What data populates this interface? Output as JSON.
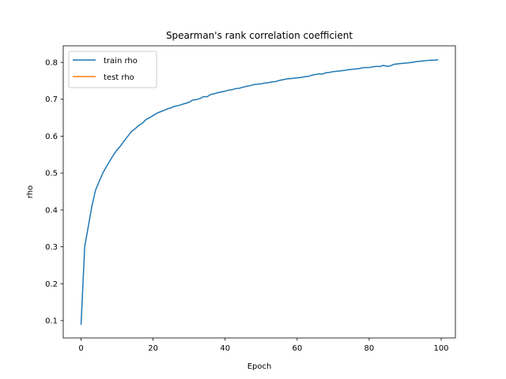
{
  "chart_data": {
    "type": "line",
    "title": "Spearman's rank correlation coefficient",
    "xlabel": "Epoch",
    "ylabel": "rho",
    "xlim": [
      -4.95,
      103.95
    ],
    "ylim": [
      0.053,
      0.845
    ],
    "xticks": [
      0,
      20,
      40,
      60,
      80,
      100
    ],
    "yticks": [
      0.1,
      0.2,
      0.3,
      0.4,
      0.5,
      0.6,
      0.7,
      0.8
    ],
    "xtick_labels": [
      "0",
      "20",
      "40",
      "60",
      "80",
      "100"
    ],
    "ytick_labels": [
      "0.1",
      "0.2",
      "0.3",
      "0.4",
      "0.5",
      "0.6",
      "0.7",
      "0.8"
    ],
    "grid": false,
    "legend_position": "upper-left",
    "series": [
      {
        "name": "train rho",
        "color": "#1f77b4",
        "x": [
          0,
          1,
          2,
          3,
          4,
          5,
          6,
          7,
          8,
          9,
          10,
          11,
          12,
          13,
          14,
          15,
          16,
          17,
          18,
          19,
          20,
          21,
          22,
          23,
          24,
          25,
          26,
          27,
          28,
          29,
          30,
          31,
          32,
          33,
          34,
          35,
          36,
          37,
          38,
          39,
          40,
          41,
          42,
          43,
          44,
          45,
          46,
          47,
          48,
          49,
          50,
          51,
          52,
          53,
          54,
          55,
          56,
          57,
          58,
          59,
          60,
          61,
          62,
          63,
          64,
          65,
          66,
          67,
          68,
          69,
          70,
          71,
          72,
          73,
          74,
          75,
          76,
          77,
          78,
          79,
          80,
          81,
          82,
          83,
          84,
          85,
          86,
          87,
          88,
          89,
          90,
          91,
          92,
          93,
          94,
          95,
          96,
          97,
          98,
          99
        ],
        "values": [
          0.09,
          0.3,
          0.355,
          0.41,
          0.453,
          0.477,
          0.499,
          0.517,
          0.533,
          0.549,
          0.563,
          0.574,
          0.588,
          0.6,
          0.613,
          0.62,
          0.629,
          0.635,
          0.645,
          0.65,
          0.656,
          0.662,
          0.666,
          0.67,
          0.674,
          0.677,
          0.681,
          0.683,
          0.686,
          0.689,
          0.692,
          0.698,
          0.699,
          0.702,
          0.707,
          0.707,
          0.713,
          0.715,
          0.718,
          0.72,
          0.722,
          0.725,
          0.726,
          0.729,
          0.73,
          0.733,
          0.735,
          0.737,
          0.74,
          0.741,
          0.742,
          0.744,
          0.745,
          0.747,
          0.748,
          0.751,
          0.753,
          0.755,
          0.756,
          0.757,
          0.758,
          0.759,
          0.761,
          0.762,
          0.765,
          0.767,
          0.769,
          0.768,
          0.772,
          0.773,
          0.775,
          0.776,
          0.777,
          0.778,
          0.78,
          0.781,
          0.782,
          0.783,
          0.785,
          0.786,
          0.786,
          0.788,
          0.789,
          0.789,
          0.792,
          0.789,
          0.791,
          0.795,
          0.796,
          0.797,
          0.798,
          0.799,
          0.8,
          0.802,
          0.803,
          0.804,
          0.805,
          0.806,
          0.806,
          0.807
        ]
      },
      {
        "name": "test rho",
        "color": "#ff7f0e",
        "x": [],
        "values": []
      }
    ]
  }
}
